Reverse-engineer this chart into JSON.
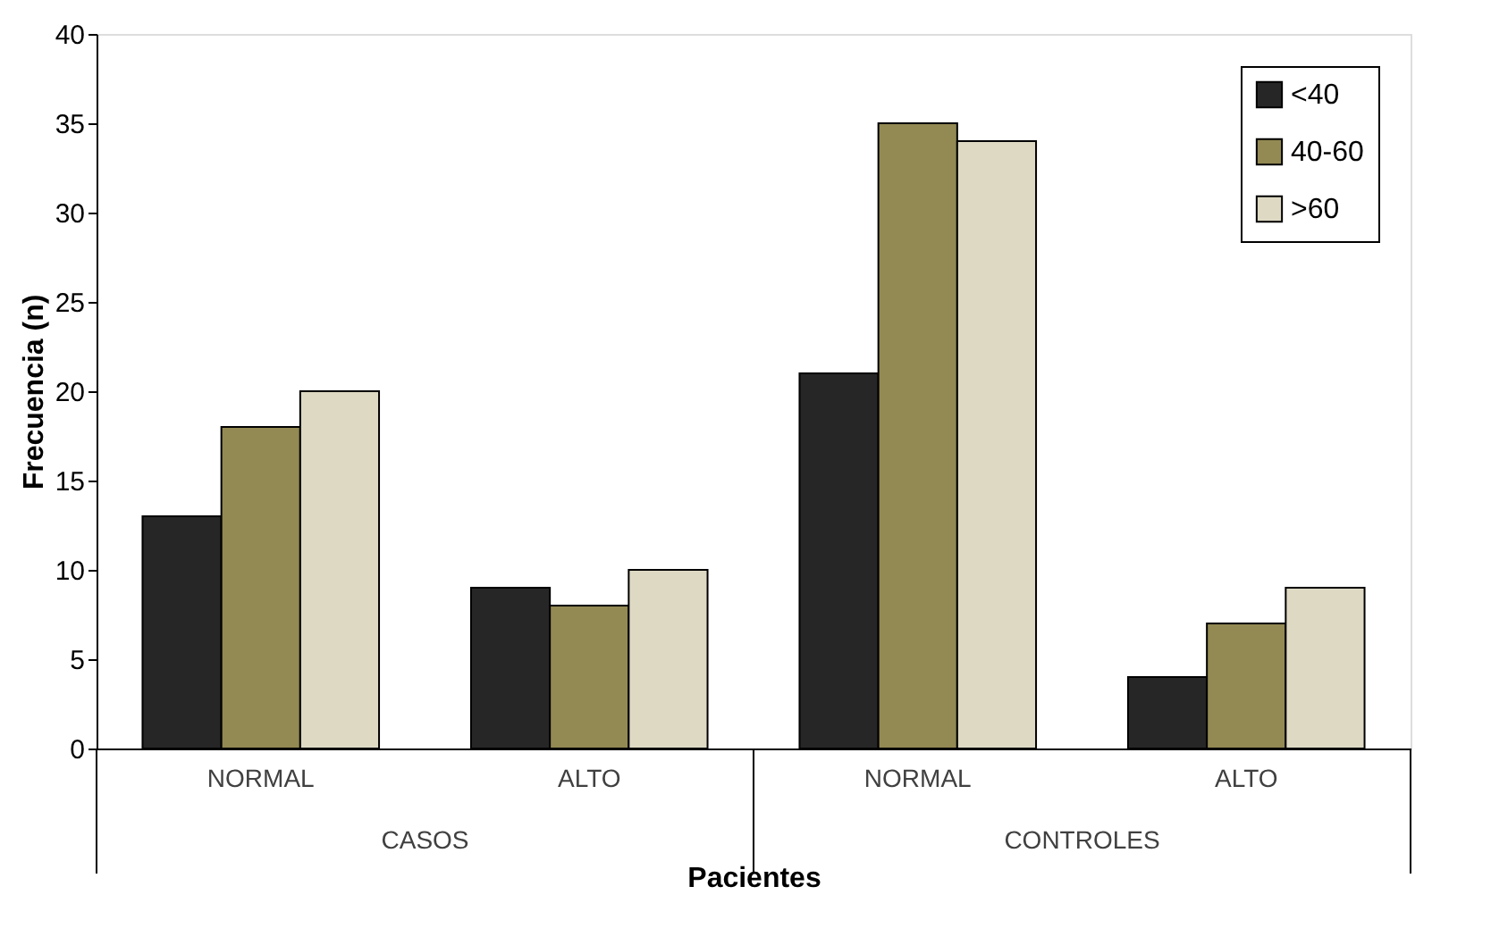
{
  "chart_data": {
    "type": "bar",
    "xlabel": "Pacientes",
    "ylabel": "Frecuencia (n)",
    "categories": [
      "NORMAL",
      "ALTO",
      "NORMAL",
      "ALTO"
    ],
    "series": [
      {
        "name": "<40",
        "color": "#262626",
        "values": [
          13,
          9,
          21,
          4
        ]
      },
      {
        "name": "40-60",
        "color": "#938953",
        "values": [
          18,
          8,
          35,
          7
        ]
      },
      {
        "name": ">60",
        "color": "#ddd9c3",
        "values": [
          20,
          10,
          34,
          9
        ]
      }
    ],
    "annotations": [
      "CASOS",
      "CONTROLES"
    ],
    "ylim": [
      0,
      40
    ],
    "yticks": [
      0,
      5,
      10,
      15,
      20,
      25,
      30,
      35,
      40
    ],
    "grid": false,
    "legend": "top right"
  }
}
